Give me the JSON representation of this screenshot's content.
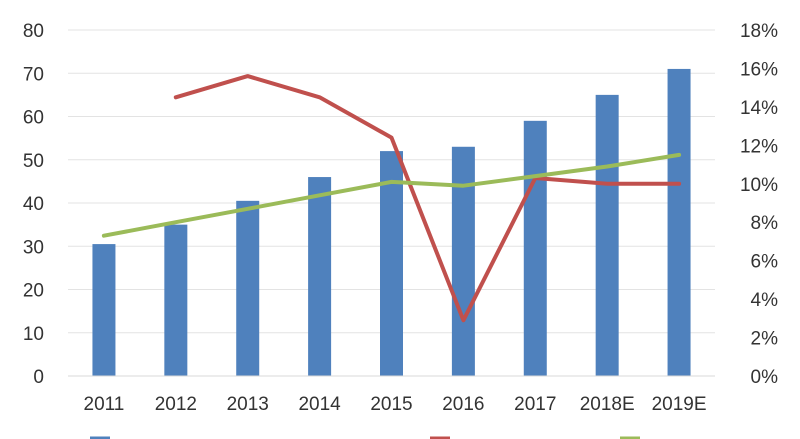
{
  "chart_data": {
    "type": "bar",
    "categories": [
      "2011",
      "2012",
      "2013",
      "2014",
      "2015",
      "2016",
      "2017",
      "2018E",
      "2019E"
    ],
    "series": [
      {
        "kind": "bar",
        "axis": "left",
        "color": "#4f81bd",
        "values": [
          30.5,
          35,
          40.5,
          46,
          52,
          53,
          59,
          65,
          71
        ]
      },
      {
        "kind": "line",
        "axis": "right",
        "color": "#c0504d",
        "values": [
          null,
          14.5,
          15.6,
          14.5,
          12.4,
          2.9,
          10.3,
          10.0,
          10.0
        ]
      },
      {
        "kind": "line",
        "axis": "right",
        "color": "#9bbb59",
        "values": [
          7.3,
          8.0,
          8.7,
          9.4,
          10.1,
          9.9,
          10.4,
          10.9,
          11.5
        ]
      }
    ],
    "ylim_left": [
      0,
      80
    ],
    "yticks_left": [
      "0",
      "10",
      "20",
      "30",
      "40",
      "50",
      "60",
      "70",
      "80"
    ],
    "ylim_right": [
      0,
      18
    ],
    "yticks_right": [
      "0%",
      "2%",
      "4%",
      "6%",
      "8%",
      "10%",
      "12%",
      "14%",
      "16%",
      "18%"
    ],
    "grid": true,
    "legend": "bottom (cut off)"
  }
}
